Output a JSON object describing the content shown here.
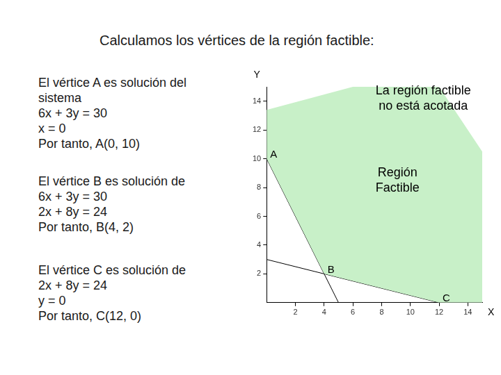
{
  "chart_data": {
    "type": "scatter",
    "title": "Calculamos los vértices de la región factible:",
    "text_blocks": [
      [
        "El vértice A es solución del",
        "sistema",
        "6x + 3y = 30",
        "x = 0",
        "Por tanto, A(0, 10)"
      ],
      [
        "El vértice B es solución de",
        "6x + 3y = 30",
        "2x + 8y = 24",
        "Por tanto, B(4, 2)"
      ],
      [
        "El vértice C es solución de",
        "2x + 8y = 24",
        "y = 0",
        "Por tanto, C(12, 0)"
      ]
    ],
    "xlabel": "X",
    "ylabel": "Y",
    "xlim": [
      0,
      15
    ],
    "ylim": [
      0,
      15
    ],
    "xticks": [
      2,
      4,
      6,
      8,
      10,
      12,
      14
    ],
    "yticks": [
      2,
      4,
      6,
      8,
      10,
      12,
      14
    ],
    "grid": false,
    "region": {
      "x": [
        0,
        0,
        6,
        12,
        15,
        15,
        12,
        4
      ],
      "y": [
        10,
        13.4,
        15,
        15,
        10.5,
        0,
        0,
        2
      ],
      "color": "#c8f0c8"
    },
    "lines": [
      {
        "x": [
          0,
          5
        ],
        "y": [
          10,
          0
        ],
        "color": "#000000"
      },
      {
        "x": [
          0,
          12
        ],
        "y": [
          3,
          0
        ],
        "color": "#000000"
      }
    ],
    "vertices": [
      {
        "name": "A",
        "x": 0,
        "y": 10
      },
      {
        "name": "B",
        "x": 4,
        "y": 2
      },
      {
        "name": "C",
        "x": 12,
        "y": 0
      }
    ],
    "annotations": [
      {
        "text": [
          "La región factible",
          "no está acotada"
        ],
        "x": 10.9,
        "y": 14.2,
        "color": "#000000"
      },
      {
        "text": [
          "Región",
          "Factible"
        ],
        "x": 9.1,
        "y": 8.5,
        "color": "#000000"
      }
    ]
  }
}
